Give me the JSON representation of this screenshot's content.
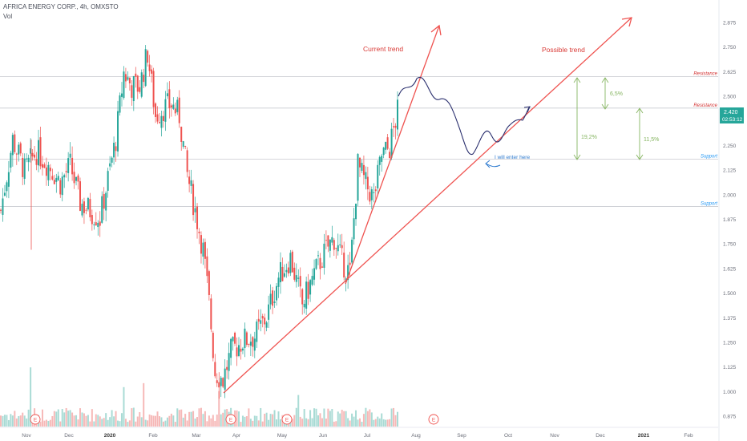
{
  "header": {
    "symbol_line": "AFRICA ENERGY CORP., 4h, OMXSTO",
    "vol_label": "Vol"
  },
  "price_axis": {
    "ticks": [
      "2.875",
      "2.750",
      "2.625",
      "2.500",
      "2.375",
      "2.250",
      "2.125",
      "2.000",
      "1.875",
      "1.750",
      "1.625",
      "1.500",
      "1.375",
      "1.250",
      "1.125",
      "1.000",
      "0.875"
    ],
    "last_price": "2.420",
    "countdown": "02:53:12",
    "last_price_color": "#26a69a"
  },
  "chart_data": {
    "type": "candlestick",
    "title": "AFRICA ENERGY CORP., 4h, OMXSTO",
    "x_ticks": [
      "Nov",
      "Dec",
      "2020",
      "Feb",
      "Mar",
      "Apr",
      "May",
      "Jun",
      "Jul",
      "Aug",
      "Sep",
      "Oct",
      "Nov",
      "Dec",
      "2021",
      "Feb"
    ],
    "ylim": [
      0.83,
      2.92
    ],
    "grid": false,
    "anchors": [
      {
        "t": 0,
        "p": 1.92
      },
      {
        "t": 6,
        "p": 2.28
      },
      {
        "t": 12,
        "p": 2.12
      },
      {
        "t": 18,
        "p": 2.22
      },
      {
        "t": 25,
        "p": 2.14
      },
      {
        "t": 30,
        "p": 2.06
      },
      {
        "t": 35,
        "p": 2.15
      },
      {
        "t": 40,
        "p": 1.96
      },
      {
        "t": 45,
        "p": 1.92
      },
      {
        "t": 50,
        "p": 1.88
      },
      {
        "t": 54,
        "p": 2.08
      },
      {
        "t": 58,
        "p": 2.28
      },
      {
        "t": 62,
        "p": 2.62
      },
      {
        "t": 66,
        "p": 2.55
      },
      {
        "t": 70,
        "p": 2.55
      },
      {
        "t": 74,
        "p": 2.72
      },
      {
        "t": 78,
        "p": 2.4
      },
      {
        "t": 82,
        "p": 2.44
      },
      {
        "t": 86,
        "p": 2.46
      },
      {
        "t": 90,
        "p": 2.4
      },
      {
        "t": 94,
        "p": 2.1
      },
      {
        "t": 98,
        "p": 1.92
      },
      {
        "t": 102,
        "p": 1.72
      },
      {
        "t": 105,
        "p": 1.45
      },
      {
        "t": 108,
        "p": 1.1
      },
      {
        "t": 112,
        "p": 1.06
      },
      {
        "t": 116,
        "p": 1.2
      },
      {
        "t": 122,
        "p": 1.26
      },
      {
        "t": 128,
        "p": 1.28
      },
      {
        "t": 134,
        "p": 1.38
      },
      {
        "t": 140,
        "p": 1.58
      },
      {
        "t": 146,
        "p": 1.68
      },
      {
        "t": 152,
        "p": 1.44
      },
      {
        "t": 158,
        "p": 1.6
      },
      {
        "t": 164,
        "p": 1.72
      },
      {
        "t": 168,
        "p": 1.78
      },
      {
        "t": 172,
        "p": 1.66
      },
      {
        "t": 176,
        "p": 1.6
      },
      {
        "t": 180,
        "p": 2.15
      },
      {
        "t": 184,
        "p": 2.05
      },
      {
        "t": 188,
        "p": 1.98
      },
      {
        "t": 192,
        "p": 2.2
      },
      {
        "t": 196,
        "p": 2.24
      },
      {
        "t": 200,
        "p": 2.42
      }
    ],
    "candle_count": 201,
    "volume": {
      "typical": 0.06,
      "spikes": [
        {
          "t": 15,
          "v": 0.3
        },
        {
          "t": 62,
          "v": 0.2
        },
        {
          "t": 72,
          "v": 0.22
        },
        {
          "t": 110,
          "v": 0.18
        },
        {
          "t": 150,
          "v": 0.16
        }
      ]
    },
    "colors": {
      "up": "#26a69a",
      "down": "#ef5350",
      "vol_up": "#a9dbd5",
      "vol_down": "#f6b9b8"
    },
    "earnings_markers": [
      {
        "label": "E"
      },
      {
        "label": "E"
      },
      {
        "label": "E"
      },
      {
        "label": "E"
      }
    ],
    "levels": [
      {
        "price": 2.6,
        "label": "Resistance",
        "color": "#d22f2f"
      },
      {
        "price": 2.44,
        "label": "Resistance",
        "color": "#d22f2f"
      },
      {
        "price": 2.18,
        "label": "Support",
        "color": "#2196f3"
      },
      {
        "price": 1.94,
        "label": "Support",
        "color": "#2196f3"
      }
    ],
    "trend_lines": [
      {
        "label": "Current trend",
        "color": "#ef5350"
      },
      {
        "label": "Possible trend",
        "color": "#ef5350"
      }
    ],
    "annotations": [
      {
        "label": "I will enter here",
        "color": "#2e7bd0"
      },
      {
        "label": "6,5%",
        "color": "#86b561"
      },
      {
        "label": "19,2%",
        "color": "#86b561"
      },
      {
        "label": "11,5%",
        "color": "#86b561"
      }
    ]
  }
}
